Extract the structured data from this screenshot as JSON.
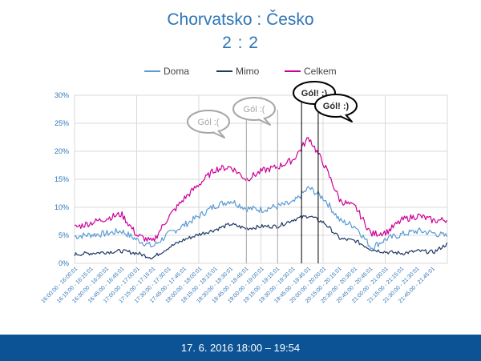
{
  "header": {
    "title": "Chorvatsko : Česko",
    "score": "2 : 2"
  },
  "footer": {
    "date_range": "17. 6. 2016 18:00 – 19:54"
  },
  "chart_data": {
    "type": "line",
    "title": "Chorvatsko : Česko",
    "subtitle": "2 : 2",
    "ylim": [
      0,
      30
    ],
    "yticks": [
      "0%",
      "5%",
      "10%",
      "15%",
      "20%",
      "25%",
      "30%"
    ],
    "grid": true,
    "legend_position": "top",
    "x_labels": [
      "16:00:00 - 16:00:01",
      "16:15:00 - 16:15:01",
      "16:30:00 - 16:30:01",
      "16:45:00 - 16:45:01",
      "17:00:00 - 17:00:01",
      "17:15:00 - 17:15:01",
      "17:30:00 - 17:30:01",
      "17:45:00 - 17:45:01",
      "18:00:00 - 18:00:01",
      "18:15:00 - 18:15:01",
      "18:30:00 - 18:30:01",
      "18:45:00 - 18:45:01",
      "19:00:00 - 19:00:01",
      "19:15:00 - 19:15:01",
      "19:30:00 - 19:30:01",
      "19:45:00 - 19:45:01",
      "20:00:00 - 20:00:01",
      "20:15:00 - 20:15:01",
      "20:30:00 - 20:30:01",
      "20:45:00 - 20:45:01",
      "21:00:00 - 21:00:01",
      "21:15:00 - 21:15:01",
      "21:30:00 - 21:30:01",
      "21:45:00 - 21:45:01"
    ],
    "x": [
      "16:00",
      "16:15",
      "16:30",
      "16:45",
      "17:00",
      "17:15",
      "17:30",
      "17:45",
      "18:00",
      "18:15",
      "18:30",
      "18:45",
      "19:00",
      "19:15",
      "19:30",
      "19:45",
      "20:00",
      "20:15",
      "20:30",
      "20:45",
      "21:00",
      "21:15",
      "21:30",
      "21:45",
      "21:58"
    ],
    "series": [
      {
        "name": "Doma",
        "color": "#5B9BD5",
        "values": [
          4.8,
          5.1,
          5.3,
          5.8,
          4.2,
          3.0,
          5.2,
          6.8,
          8.5,
          10.3,
          11.2,
          9.8,
          9.6,
          10.2,
          10.8,
          13.5,
          11.5,
          7.6,
          6.6,
          2.8,
          4.4,
          5.2,
          5.8,
          5.4,
          4.8
        ]
      },
      {
        "name": "Mimo",
        "color": "#203864",
        "values": [
          1.6,
          1.8,
          2.0,
          2.2,
          1.8,
          1.0,
          2.8,
          4.2,
          5.2,
          6.0,
          7.0,
          6.2,
          6.6,
          6.6,
          7.8,
          8.5,
          7.2,
          4.4,
          4.0,
          2.5,
          2.0,
          1.8,
          2.2,
          2.0,
          3.5
        ]
      },
      {
        "name": "Celkem",
        "color": "#CC0099",
        "values": [
          6.4,
          7.2,
          8.0,
          8.8,
          5.0,
          3.8,
          8.2,
          11.5,
          14.2,
          16.8,
          17.2,
          15.0,
          16.5,
          17.2,
          18.5,
          22.5,
          17.5,
          11.2,
          10.0,
          5.2,
          5.6,
          7.8,
          8.5,
          7.6,
          7.8
        ]
      }
    ],
    "annotations": [
      {
        "label": "Gól :(",
        "x": "18:45",
        "style": "gray"
      },
      {
        "label": "Gól :(",
        "x": "19:15",
        "style": "gray"
      },
      {
        "label": "Gól! :)",
        "x": "19:38",
        "style": "black"
      },
      {
        "label": "Gól! :)",
        "x": "19:54",
        "style": "black"
      }
    ]
  }
}
